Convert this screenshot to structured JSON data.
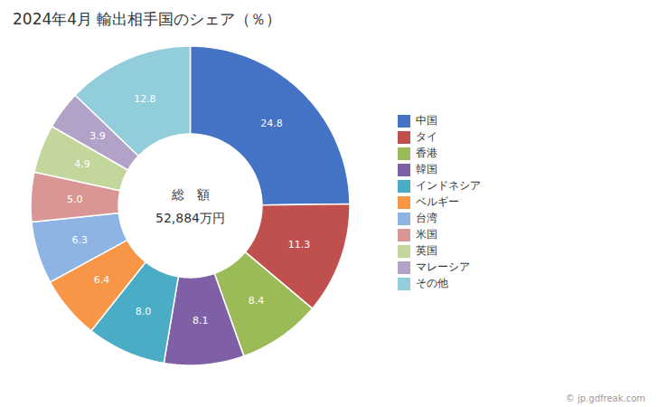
{
  "chart_data": {
    "type": "pie",
    "title": "2024年4月 輸出相手国のシェア（％）",
    "categories": [
      "中国",
      "タイ",
      "香港",
      "韓国",
      "インドネシア",
      "ベルギー",
      "台湾",
      "米国",
      "英国",
      "マレーシア",
      "その他"
    ],
    "values": [
      24.8,
      11.3,
      8.4,
      8.1,
      8.0,
      6.4,
      6.3,
      5.0,
      4.9,
      3.9,
      12.8
    ],
    "value_labels": [
      "24.8",
      "11.3",
      "8.4",
      "8.1",
      "8.0",
      "6.4",
      "6.3",
      "5.0",
      "4.9",
      "3.9",
      "12.8"
    ],
    "colors": [
      "#4472C4",
      "#C0504D",
      "#9BBB59",
      "#7F5FA5",
      "#4BACC6",
      "#F79646",
      "#8EB4E3",
      "#D99694",
      "#C3D69B",
      "#B3A2C7",
      "#92CDDC"
    ],
    "annotations": [
      "総　額",
      "52,884万円"
    ],
    "caption": "© jp.gdfreak.com",
    "data_labels": true,
    "legend": "right"
  }
}
